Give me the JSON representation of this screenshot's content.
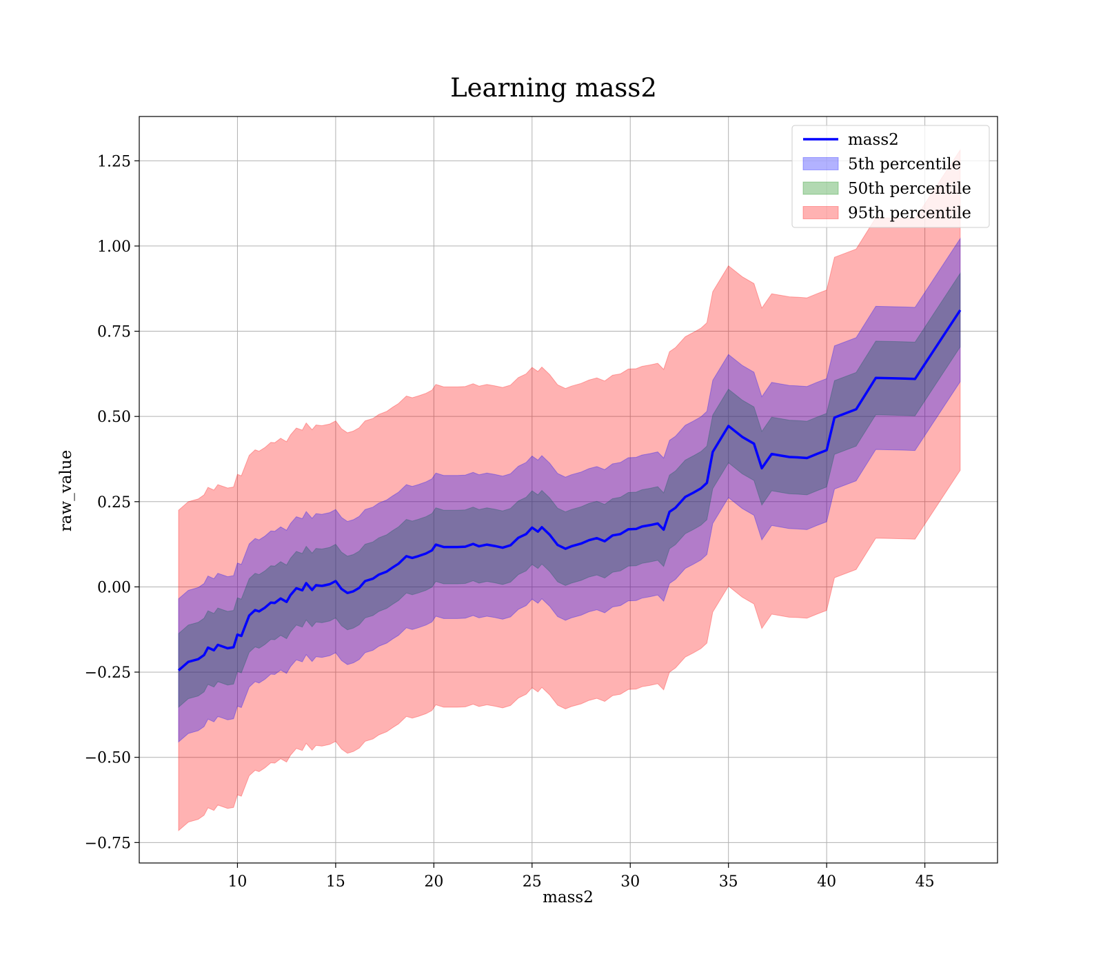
{
  "chart_data": {
    "type": "area",
    "title": "Learning mass2",
    "xlabel": "mass2",
    "ylabel": "raw_value",
    "xlim": [
      5.0,
      48.7
    ],
    "ylim": [
      -0.81,
      1.38
    ],
    "xticks": [
      10,
      15,
      20,
      25,
      30,
      35,
      40,
      45
    ],
    "xtick_labels": [
      "10",
      "15",
      "20",
      "25",
      "30",
      "35",
      "40",
      "45"
    ],
    "yticks": [
      -0.75,
      -0.5,
      -0.25,
      0.0,
      0.25,
      0.5,
      0.75,
      1.0,
      1.25
    ],
    "ytick_labels": [
      "−0.75",
      "−0.50",
      "−0.25",
      "0.00",
      "0.25",
      "0.50",
      "0.75",
      "1.00",
      "1.25"
    ],
    "grid": true,
    "legend_position": "top-right",
    "x": [
      7.0,
      7.5,
      8.0,
      8.3,
      8.5,
      8.8,
      9.0,
      9.3,
      9.5,
      9.8,
      10.0,
      10.2,
      10.6,
      10.9,
      11.1,
      11.4,
      11.7,
      11.9,
      12.2,
      12.5,
      12.7,
      13.0,
      13.3,
      13.5,
      13.8,
      14.0,
      14.3,
      14.7,
      15.0,
      15.3,
      15.6,
      15.9,
      16.2,
      16.5,
      16.9,
      17.2,
      17.6,
      17.9,
      18.2,
      18.6,
      18.9,
      19.2,
      19.6,
      19.9,
      20.1,
      20.5,
      20.9,
      21.2,
      21.6,
      22.0,
      22.3,
      22.7,
      23.1,
      23.5,
      23.9,
      24.3,
      24.7,
      25.0,
      25.3,
      25.5,
      25.9,
      26.3,
      26.7,
      27.0,
      27.5,
      27.9,
      28.3,
      28.7,
      29.1,
      29.5,
      29.9,
      30.3,
      30.6,
      31.0,
      31.4,
      31.7,
      32.0,
      32.3,
      32.8,
      33.2,
      33.6,
      33.9,
      34.2,
      35.0,
      35.7,
      36.3,
      36.7,
      37.2,
      37.6,
      38.1,
      38.5,
      39.0,
      39.5,
      40.0,
      40.4,
      41.5,
      42.5,
      43.3,
      44.0,
      44.5,
      46.8
    ],
    "series": [
      {
        "name": "mass2",
        "style": "line",
        "color": "#0000ff",
        "values": [
          -0.245,
          -0.22,
          -0.212,
          -0.2,
          -0.178,
          -0.186,
          -0.17,
          -0.176,
          -0.18,
          -0.177,
          -0.14,
          -0.144,
          -0.084,
          -0.068,
          -0.072,
          -0.061,
          -0.046,
          -0.047,
          -0.034,
          -0.044,
          -0.024,
          -0.004,
          -0.01,
          0.011,
          -0.009,
          0.005,
          0.003,
          0.008,
          0.017,
          -0.006,
          -0.018,
          -0.013,
          -0.003,
          0.017,
          0.024,
          0.036,
          0.045,
          0.057,
          0.068,
          0.09,
          0.085,
          0.09,
          0.098,
          0.107,
          0.124,
          0.117,
          0.117,
          0.117,
          0.118,
          0.126,
          0.119,
          0.124,
          0.12,
          0.115,
          0.122,
          0.144,
          0.155,
          0.174,
          0.162,
          0.175,
          0.153,
          0.123,
          0.112,
          0.119,
          0.127,
          0.137,
          0.143,
          0.134,
          0.151,
          0.155,
          0.169,
          0.17,
          0.177,
          0.181,
          0.186,
          0.168,
          0.22,
          0.232,
          0.264,
          0.276,
          0.289,
          0.305,
          0.396,
          0.472,
          0.44,
          0.42,
          0.348,
          0.39,
          0.386,
          0.381,
          0.38,
          0.378,
          0.39,
          0.401,
          0.497,
          0.521,
          0.613,
          0.612,
          0.611,
          0.61,
          0.812
        ]
      },
      {
        "name": "5th percentile",
        "style": "band",
        "color": "#0000ff",
        "opacity": 0.3,
        "lower": [
          -0.455,
          -0.43,
          -0.422,
          -0.41,
          -0.388,
          -0.396,
          -0.38,
          -0.386,
          -0.39,
          -0.387,
          -0.35,
          -0.354,
          -0.294,
          -0.278,
          -0.282,
          -0.271,
          -0.256,
          -0.257,
          -0.244,
          -0.254,
          -0.234,
          -0.214,
          -0.22,
          -0.199,
          -0.219,
          -0.205,
          -0.207,
          -0.202,
          -0.193,
          -0.216,
          -0.228,
          -0.223,
          -0.213,
          -0.193,
          -0.186,
          -0.174,
          -0.165,
          -0.153,
          -0.142,
          -0.12,
          -0.125,
          -0.12,
          -0.112,
          -0.103,
          -0.086,
          -0.093,
          -0.093,
          -0.093,
          -0.092,
          -0.084,
          -0.091,
          -0.086,
          -0.09,
          -0.095,
          -0.088,
          -0.066,
          -0.055,
          -0.036,
          -0.048,
          -0.035,
          -0.057,
          -0.087,
          -0.098,
          -0.091,
          -0.083,
          -0.073,
          -0.067,
          -0.076,
          -0.059,
          -0.055,
          -0.041,
          -0.04,
          -0.033,
          -0.029,
          -0.024,
          -0.042,
          0.01,
          0.022,
          0.054,
          0.066,
          0.079,
          0.095,
          0.186,
          0.262,
          0.23,
          0.21,
          0.138,
          0.18,
          0.176,
          0.171,
          0.17,
          0.168,
          0.18,
          0.191,
          0.287,
          0.311,
          0.403,
          0.402,
          0.401,
          0.4,
          0.602
        ],
        "upper": [
          -0.035,
          -0.01,
          -0.002,
          0.01,
          0.032,
          0.024,
          0.04,
          0.034,
          0.03,
          0.033,
          0.07,
          0.066,
          0.126,
          0.142,
          0.138,
          0.149,
          0.164,
          0.163,
          0.176,
          0.166,
          0.186,
          0.206,
          0.2,
          0.221,
          0.201,
          0.215,
          0.213,
          0.218,
          0.227,
          0.204,
          0.192,
          0.197,
          0.207,
          0.227,
          0.234,
          0.246,
          0.255,
          0.267,
          0.278,
          0.3,
          0.295,
          0.3,
          0.308,
          0.317,
          0.334,
          0.327,
          0.327,
          0.327,
          0.328,
          0.336,
          0.329,
          0.334,
          0.33,
          0.325,
          0.332,
          0.354,
          0.365,
          0.384,
          0.372,
          0.385,
          0.363,
          0.333,
          0.322,
          0.329,
          0.337,
          0.347,
          0.353,
          0.344,
          0.361,
          0.365,
          0.379,
          0.38,
          0.387,
          0.391,
          0.396,
          0.378,
          0.43,
          0.442,
          0.474,
          0.486,
          0.499,
          0.515,
          0.606,
          0.682,
          0.65,
          0.63,
          0.558,
          0.6,
          0.596,
          0.591,
          0.59,
          0.588,
          0.6,
          0.611,
          0.707,
          0.731,
          0.823,
          0.822,
          0.821,
          0.82,
          1.022
        ]
      },
      {
        "name": "50th percentile",
        "style": "band",
        "color": "#008000",
        "opacity": 0.3,
        "lower": [
          -0.353,
          -0.328,
          -0.32,
          -0.308,
          -0.286,
          -0.294,
          -0.278,
          -0.284,
          -0.288,
          -0.285,
          -0.248,
          -0.252,
          -0.192,
          -0.176,
          -0.18,
          -0.169,
          -0.154,
          -0.155,
          -0.142,
          -0.152,
          -0.132,
          -0.112,
          -0.118,
          -0.097,
          -0.117,
          -0.103,
          -0.105,
          -0.1,
          -0.091,
          -0.114,
          -0.126,
          -0.121,
          -0.111,
          -0.091,
          -0.084,
          -0.072,
          -0.063,
          -0.051,
          -0.04,
          -0.018,
          -0.023,
          -0.018,
          -0.01,
          -0.001,
          0.016,
          0.009,
          0.009,
          0.009,
          0.01,
          0.018,
          0.011,
          0.016,
          0.012,
          0.007,
          0.014,
          0.036,
          0.047,
          0.066,
          0.054,
          0.067,
          0.045,
          0.015,
          0.004,
          0.011,
          0.019,
          0.029,
          0.035,
          0.026,
          0.043,
          0.047,
          0.061,
          0.062,
          0.069,
          0.073,
          0.078,
          0.06,
          0.112,
          0.124,
          0.156,
          0.168,
          0.181,
          0.197,
          0.288,
          0.364,
          0.332,
          0.312,
          0.24,
          0.282,
          0.278,
          0.273,
          0.272,
          0.27,
          0.282,
          0.293,
          0.389,
          0.413,
          0.505,
          0.504,
          0.503,
          0.502,
          0.704
        ],
        "upper": [
          -0.137,
          -0.112,
          -0.104,
          -0.092,
          -0.07,
          -0.078,
          -0.062,
          -0.068,
          -0.072,
          -0.069,
          -0.032,
          -0.036,
          0.024,
          0.04,
          0.036,
          0.047,
          0.062,
          0.061,
          0.074,
          0.064,
          0.084,
          0.104,
          0.098,
          0.119,
          0.099,
          0.113,
          0.111,
          0.116,
          0.125,
          0.102,
          0.09,
          0.095,
          0.105,
          0.125,
          0.132,
          0.144,
          0.153,
          0.165,
          0.176,
          0.198,
          0.193,
          0.198,
          0.206,
          0.215,
          0.232,
          0.225,
          0.225,
          0.225,
          0.226,
          0.234,
          0.227,
          0.232,
          0.228,
          0.223,
          0.23,
          0.252,
          0.263,
          0.282,
          0.27,
          0.283,
          0.261,
          0.231,
          0.22,
          0.227,
          0.235,
          0.245,
          0.251,
          0.242,
          0.259,
          0.263,
          0.277,
          0.278,
          0.285,
          0.289,
          0.294,
          0.276,
          0.328,
          0.34,
          0.372,
          0.384,
          0.397,
          0.413,
          0.504,
          0.58,
          0.548,
          0.528,
          0.456,
          0.498,
          0.494,
          0.489,
          0.488,
          0.486,
          0.498,
          0.509,
          0.605,
          0.629,
          0.721,
          0.72,
          0.719,
          0.718,
          0.92
        ]
      },
      {
        "name": "95th percentile",
        "style": "band",
        "color": "#ff0000",
        "opacity": 0.3,
        "lower": [
          -0.715,
          -0.69,
          -0.682,
          -0.67,
          -0.648,
          -0.656,
          -0.64,
          -0.646,
          -0.65,
          -0.647,
          -0.61,
          -0.614,
          -0.554,
          -0.538,
          -0.542,
          -0.531,
          -0.516,
          -0.517,
          -0.504,
          -0.514,
          -0.494,
          -0.474,
          -0.48,
          -0.459,
          -0.479,
          -0.465,
          -0.467,
          -0.462,
          -0.453,
          -0.476,
          -0.488,
          -0.483,
          -0.473,
          -0.453,
          -0.446,
          -0.434,
          -0.425,
          -0.413,
          -0.402,
          -0.38,
          -0.385,
          -0.38,
          -0.372,
          -0.363,
          -0.346,
          -0.353,
          -0.353,
          -0.353,
          -0.352,
          -0.344,
          -0.351,
          -0.346,
          -0.35,
          -0.355,
          -0.348,
          -0.326,
          -0.315,
          -0.296,
          -0.308,
          -0.295,
          -0.317,
          -0.347,
          -0.358,
          -0.351,
          -0.343,
          -0.333,
          -0.327,
          -0.336,
          -0.319,
          -0.315,
          -0.301,
          -0.3,
          -0.293,
          -0.289,
          -0.284,
          -0.302,
          -0.25,
          -0.238,
          -0.206,
          -0.194,
          -0.181,
          -0.165,
          -0.074,
          0.002,
          -0.03,
          -0.05,
          -0.122,
          -0.08,
          -0.084,
          -0.089,
          -0.09,
          -0.092,
          -0.08,
          -0.069,
          0.027,
          0.051,
          0.143,
          0.142,
          0.141,
          0.14,
          0.342
        ],
        "upper": [
          0.225,
          0.25,
          0.258,
          0.27,
          0.292,
          0.284,
          0.3,
          0.294,
          0.29,
          0.293,
          0.33,
          0.326,
          0.386,
          0.402,
          0.398,
          0.409,
          0.424,
          0.423,
          0.436,
          0.426,
          0.446,
          0.466,
          0.46,
          0.481,
          0.461,
          0.475,
          0.473,
          0.478,
          0.487,
          0.464,
          0.452,
          0.457,
          0.467,
          0.487,
          0.494,
          0.506,
          0.515,
          0.527,
          0.538,
          0.56,
          0.555,
          0.56,
          0.568,
          0.577,
          0.594,
          0.587,
          0.587,
          0.587,
          0.588,
          0.596,
          0.589,
          0.594,
          0.59,
          0.585,
          0.592,
          0.614,
          0.625,
          0.644,
          0.632,
          0.645,
          0.623,
          0.593,
          0.582,
          0.589,
          0.597,
          0.607,
          0.613,
          0.604,
          0.621,
          0.625,
          0.639,
          0.64,
          0.647,
          0.651,
          0.656,
          0.638,
          0.69,
          0.702,
          0.734,
          0.746,
          0.759,
          0.775,
          0.866,
          0.942,
          0.91,
          0.89,
          0.818,
          0.86,
          0.856,
          0.851,
          0.85,
          0.848,
          0.86,
          0.871,
          0.967,
          0.991,
          1.083,
          1.082,
          1.081,
          1.08,
          1.282
        ]
      }
    ]
  }
}
